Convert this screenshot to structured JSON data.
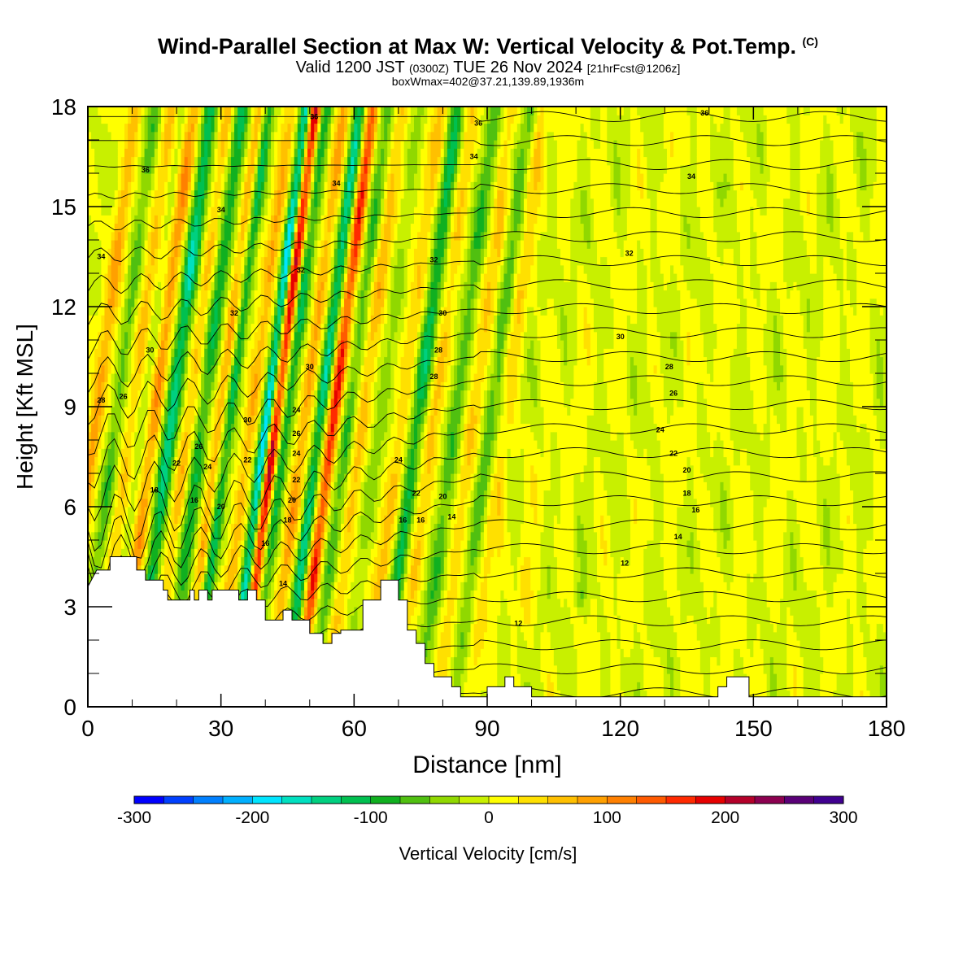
{
  "title": {
    "main": "Wind-Parallel Section at Max W: Vertical Velocity & Pot.Temp.",
    "copyright": "(C)",
    "valid_prefix": "Valid 1200 JST",
    "valid_utc": "(0300Z)",
    "valid_date": "TUE 26 Nov 2024",
    "forecast": "[21hrFcst@1206z]",
    "boxinfo": "boxWmax=402@37.21,139.89,1936m"
  },
  "chart_data": {
    "type": "heatmap",
    "xlabel": "Distance [nm]",
    "ylabel": "Height [Kft MSL]",
    "xlim": [
      0,
      180
    ],
    "ylim": [
      0,
      18
    ],
    "x_ticks": [
      0,
      30,
      60,
      90,
      120,
      150,
      180
    ],
    "y_ticks": [
      0,
      3,
      6,
      9,
      12,
      15,
      18
    ],
    "colorbar": {
      "label": "Vertical Velocity [cm/s]",
      "min": -300,
      "max": 300,
      "tick_labels": [
        -300,
        -200,
        -100,
        0,
        100,
        200,
        300
      ],
      "colors": [
        "#0000ff",
        "#0040ff",
        "#0080ff",
        "#00b0ff",
        "#00e5ff",
        "#00e0c0",
        "#00d080",
        "#00c050",
        "#10b020",
        "#50c010",
        "#90d800",
        "#c8f000",
        "#ffff00",
        "#ffe000",
        "#ffc000",
        "#ffa000",
        "#ff8000",
        "#ff5a00",
        "#ff2a00",
        "#e60000",
        "#b4002a",
        "#8c0050",
        "#5a0078",
        "#400090"
      ]
    },
    "terrain_top_kft": [
      [
        0,
        3.6
      ],
      [
        2,
        4.1
      ],
      [
        5,
        4.1
      ],
      [
        5,
        4.5
      ],
      [
        11,
        4.5
      ],
      [
        11,
        4.1
      ],
      [
        13,
        4.1
      ],
      [
        13,
        3.8
      ],
      [
        17,
        3.8
      ],
      [
        17,
        3.5
      ],
      [
        18,
        3.5
      ],
      [
        18,
        3.2
      ],
      [
        23,
        3.2
      ],
      [
        23,
        3.5
      ],
      [
        24,
        3.5
      ],
      [
        24,
        3.2
      ],
      [
        25,
        3.2
      ],
      [
        25,
        3.5
      ],
      [
        27,
        3.5
      ],
      [
        27,
        3.2
      ],
      [
        28,
        3.2
      ],
      [
        28,
        3.5
      ],
      [
        34,
        3.5
      ],
      [
        34,
        3.2
      ],
      [
        36,
        3.2
      ],
      [
        36,
        3.5
      ],
      [
        38,
        3.5
      ],
      [
        38,
        3.2
      ],
      [
        40,
        3.2
      ],
      [
        40,
        2.6
      ],
      [
        44,
        2.6
      ],
      [
        44,
        2.9
      ],
      [
        46,
        2.9
      ],
      [
        46,
        2.6
      ],
      [
        50,
        2.6
      ],
      [
        50,
        2.2
      ],
      [
        53,
        2.2
      ],
      [
        53,
        1.9
      ],
      [
        55,
        1.9
      ],
      [
        55,
        2.2
      ],
      [
        57,
        2.2
      ],
      [
        57,
        2.3
      ],
      [
        62,
        2.3
      ],
      [
        62,
        3.2
      ],
      [
        66,
        3.2
      ],
      [
        66,
        3.8
      ],
      [
        70,
        3.8
      ],
      [
        70,
        3.2
      ],
      [
        72,
        3.2
      ],
      [
        72,
        2.3
      ],
      [
        74,
        2.3
      ],
      [
        74,
        1.9
      ],
      [
        76,
        1.9
      ],
      [
        76,
        1.3
      ],
      [
        78,
        1.3
      ],
      [
        78,
        0.9
      ],
      [
        82,
        0.9
      ],
      [
        82,
        0.6
      ],
      [
        84,
        0.6
      ],
      [
        84,
        0.3
      ],
      [
        90,
        0.3
      ],
      [
        90,
        0.6
      ],
      [
        94,
        0.6
      ],
      [
        94,
        0.9
      ],
      [
        96,
        0.9
      ],
      [
        96,
        0.6
      ],
      [
        100,
        0.6
      ],
      [
        100,
        0.3
      ],
      [
        142,
        0.3
      ],
      [
        142,
        0.6
      ],
      [
        144,
        0.6
      ],
      [
        144,
        0.9
      ],
      [
        149,
        0.9
      ],
      [
        149,
        0.3
      ],
      [
        180,
        0.3
      ]
    ],
    "theta_contour_labels": [
      {
        "text": "36",
        "x": 51,
        "y": 17.7
      },
      {
        "text": "36",
        "x": 88,
        "y": 17.5
      },
      {
        "text": "34",
        "x": 87,
        "y": 16.5
      },
      {
        "text": "36",
        "x": 139,
        "y": 17.8
      },
      {
        "text": "36",
        "x": 13,
        "y": 16.1
      },
      {
        "text": "34",
        "x": 56,
        "y": 15.7
      },
      {
        "text": "34",
        "x": 136,
        "y": 15.9
      },
      {
        "text": "34",
        "x": 30,
        "y": 14.9
      },
      {
        "text": "34",
        "x": 3,
        "y": 13.5
      },
      {
        "text": "32",
        "x": 78,
        "y": 13.4
      },
      {
        "text": "32",
        "x": 122,
        "y": 13.6
      },
      {
        "text": "32",
        "x": 48,
        "y": 13.1
      },
      {
        "text": "32",
        "x": 33,
        "y": 11.8
      },
      {
        "text": "30",
        "x": 80,
        "y": 11.8
      },
      {
        "text": "30",
        "x": 120,
        "y": 11.1
      },
      {
        "text": "30",
        "x": 14,
        "y": 10.7
      },
      {
        "text": "28",
        "x": 79,
        "y": 10.7
      },
      {
        "text": "30",
        "x": 50,
        "y": 10.2
      },
      {
        "text": "28",
        "x": 131,
        "y": 10.2
      },
      {
        "text": "28",
        "x": 78,
        "y": 9.9
      },
      {
        "text": "28",
        "x": 3,
        "y": 9.2
      },
      {
        "text": "26",
        "x": 8,
        "y": 9.3
      },
      {
        "text": "26",
        "x": 132,
        "y": 9.4
      },
      {
        "text": "24",
        "x": 47,
        "y": 8.9
      },
      {
        "text": "30",
        "x": 36,
        "y": 8.6
      },
      {
        "text": "26",
        "x": 47,
        "y": 8.2
      },
      {
        "text": "24",
        "x": 129,
        "y": 8.3
      },
      {
        "text": "26",
        "x": 25,
        "y": 7.8
      },
      {
        "text": "24",
        "x": 47,
        "y": 7.6
      },
      {
        "text": "22",
        "x": 132,
        "y": 7.6
      },
      {
        "text": "22",
        "x": 36,
        "y": 7.4
      },
      {
        "text": "24",
        "x": 70,
        "y": 7.4
      },
      {
        "text": "22",
        "x": 20,
        "y": 7.3
      },
      {
        "text": "24",
        "x": 27,
        "y": 7.2
      },
      {
        "text": "20",
        "x": 135,
        "y": 7.1
      },
      {
        "text": "22",
        "x": 47,
        "y": 6.8
      },
      {
        "text": "18",
        "x": 15,
        "y": 6.5
      },
      {
        "text": "22",
        "x": 74,
        "y": 6.4
      },
      {
        "text": "18",
        "x": 135,
        "y": 6.4
      },
      {
        "text": "20",
        "x": 46,
        "y": 6.2
      },
      {
        "text": "20",
        "x": 80,
        "y": 6.3
      },
      {
        "text": "16",
        "x": 24,
        "y": 6.2
      },
      {
        "text": "20",
        "x": 30,
        "y": 6.0
      },
      {
        "text": "16",
        "x": 137,
        "y": 5.9
      },
      {
        "text": "18",
        "x": 45,
        "y": 5.6
      },
      {
        "text": "16",
        "x": 71,
        "y": 5.6
      },
      {
        "text": "16",
        "x": 75,
        "y": 5.6
      },
      {
        "text": "14",
        "x": 82,
        "y": 5.7
      },
      {
        "text": "14",
        "x": 133,
        "y": 5.1
      },
      {
        "text": "16",
        "x": 40,
        "y": 4.9
      },
      {
        "text": "12",
        "x": 121,
        "y": 4.3
      },
      {
        "text": "14",
        "x": 44,
        "y": 3.7
      },
      {
        "text": "12",
        "x": 97,
        "y": 2.5
      }
    ]
  }
}
